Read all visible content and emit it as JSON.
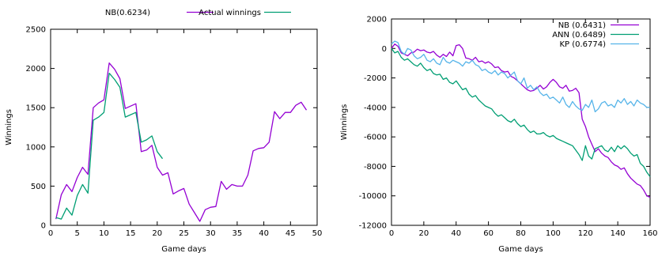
{
  "chart_data": [
    {
      "type": "line",
      "xlabel": "Game days",
      "ylabel": "Winnings",
      "xlim": [
        0,
        50
      ],
      "ylim": [
        0,
        2500
      ],
      "xticks": [
        0,
        5,
        10,
        15,
        20,
        25,
        30,
        35,
        40,
        45,
        50
      ],
      "yticks": [
        0,
        500,
        1000,
        1500,
        2000,
        2500
      ],
      "grid": false,
      "legend_position": "top",
      "series": [
        {
          "name": "NB(0.6234)",
          "color": "#9400d3",
          "x": [
            1,
            2,
            3,
            4,
            5,
            6,
            7,
            8,
            9,
            10,
            11,
            12,
            13,
            14,
            15,
            16,
            17,
            18,
            19,
            20,
            21,
            22,
            23,
            24,
            25,
            26,
            27,
            28,
            29,
            30,
            31,
            32,
            33,
            34,
            35,
            36,
            37,
            38,
            39,
            40,
            41,
            42,
            43,
            44,
            45,
            46,
            47,
            48
          ],
          "y": [
            80,
            390,
            520,
            430,
            610,
            740,
            650,
            1500,
            1560,
            1600,
            2070,
            1990,
            1870,
            1490,
            1520,
            1550,
            940,
            960,
            1020,
            740,
            640,
            670,
            400,
            440,
            470,
            270,
            160,
            50,
            200,
            230,
            240,
            560,
            460,
            520,
            500,
            500,
            640,
            950,
            980,
            990,
            1060,
            1450,
            1360,
            1440,
            1440,
            1530,
            1570,
            1470
          ]
        },
        {
          "name": "Actual winnings",
          "color": "#009e73",
          "x": [
            1,
            2,
            3,
            4,
            5,
            6,
            7,
            8,
            9,
            10,
            11,
            12,
            13,
            14,
            15,
            16,
            17,
            18,
            19,
            20,
            21
          ],
          "y": [
            100,
            80,
            220,
            130,
            380,
            520,
            410,
            1340,
            1380,
            1440,
            1940,
            1860,
            1760,
            1380,
            1410,
            1440,
            1060,
            1090,
            1140,
            940,
            850
          ]
        }
      ]
    },
    {
      "type": "line",
      "xlabel": "Game days",
      "ylabel": "Winnings",
      "xlim": [
        0,
        160
      ],
      "ylim": [
        -12000,
        2000
      ],
      "xticks": [
        0,
        20,
        40,
        60,
        80,
        100,
        120,
        140,
        160
      ],
      "yticks": [
        2000,
        0,
        -2000,
        -4000,
        -6000,
        -8000,
        -10000,
        -12000
      ],
      "grid": false,
      "legend_position": "top-right",
      "series": [
        {
          "name": "NB (0.6431)",
          "color": "#9400d3",
          "x": [
            0,
            2,
            4,
            6,
            8,
            10,
            12,
            14,
            16,
            18,
            20,
            22,
            24,
            26,
            28,
            30,
            32,
            34,
            36,
            38,
            40,
            42,
            44,
            46,
            48,
            50,
            52,
            54,
            56,
            58,
            60,
            62,
            64,
            66,
            68,
            70,
            72,
            74,
            76,
            78,
            80,
            82,
            84,
            86,
            88,
            90,
            92,
            94,
            96,
            98,
            100,
            102,
            104,
            106,
            108,
            110,
            112,
            114,
            116,
            118,
            120,
            122,
            124,
            126,
            128,
            130,
            132,
            134,
            136,
            138,
            140,
            142,
            144,
            146,
            148,
            150,
            152,
            154,
            156,
            158,
            160
          ],
          "y": [
            0,
            300,
            150,
            -300,
            -400,
            -500,
            -300,
            -250,
            -50,
            -150,
            -100,
            -250,
            -300,
            -200,
            -450,
            -600,
            -400,
            -550,
            -250,
            -500,
            200,
            250,
            0,
            -650,
            -700,
            -800,
            -600,
            -900,
            -850,
            -1000,
            -900,
            -1050,
            -1300,
            -1250,
            -1500,
            -1600,
            -1550,
            -1900,
            -2000,
            -2200,
            -2400,
            -2600,
            -2800,
            -2900,
            -2850,
            -2700,
            -2500,
            -2750,
            -2600,
            -2300,
            -2100,
            -2300,
            -2600,
            -2700,
            -2500,
            -2900,
            -2850,
            -2700,
            -3000,
            -4800,
            -5300,
            -6000,
            -6500,
            -7000,
            -6800,
            -7100,
            -7300,
            -7400,
            -7700,
            -7900,
            -8000,
            -8200,
            -8100,
            -8500,
            -8800,
            -9000,
            -9200,
            -9300,
            -9600,
            -10000,
            -10100
          ]
        },
        {
          "name": "ANN (0.6489)",
          "color": "#009e73",
          "x": [
            0,
            2,
            4,
            6,
            8,
            10,
            12,
            14,
            16,
            18,
            20,
            22,
            24,
            26,
            28,
            30,
            32,
            34,
            36,
            38,
            40,
            42,
            44,
            46,
            48,
            50,
            52,
            54,
            56,
            58,
            60,
            62,
            64,
            66,
            68,
            70,
            72,
            74,
            76,
            78,
            80,
            82,
            84,
            86,
            88,
            90,
            92,
            94,
            96,
            98,
            100,
            102,
            104,
            106,
            108,
            110,
            112,
            114,
            116,
            118,
            120,
            122,
            124,
            126,
            128,
            130,
            132,
            134,
            136,
            138,
            140,
            142,
            144,
            146,
            148,
            150,
            152,
            154,
            156,
            158,
            160
          ],
          "y": [
            0,
            -300,
            -200,
            -600,
            -800,
            -700,
            -900,
            -1100,
            -1200,
            -1000,
            -1300,
            -1500,
            -1400,
            -1700,
            -1800,
            -1750,
            -2100,
            -2000,
            -2300,
            -2400,
            -2200,
            -2500,
            -2800,
            -2700,
            -3100,
            -3300,
            -3200,
            -3500,
            -3700,
            -3900,
            -4000,
            -4100,
            -4400,
            -4600,
            -4500,
            -4700,
            -4900,
            -5000,
            -4800,
            -5100,
            -5300,
            -5200,
            -5500,
            -5700,
            -5600,
            -5800,
            -5800,
            -5700,
            -5900,
            -6000,
            -5900,
            -6100,
            -6200,
            -6300,
            -6400,
            -6500,
            -6600,
            -6900,
            -7200,
            -7600,
            -6600,
            -7300,
            -7500,
            -6800,
            -6700,
            -6600,
            -6900,
            -7000,
            -6700,
            -7000,
            -6600,
            -6800,
            -6600,
            -6800,
            -7100,
            -7300,
            -7200,
            -7800,
            -8000,
            -8400,
            -8700
          ]
        },
        {
          "name": "KP (0.6774)",
          "color": "#56b4e9",
          "x": [
            0,
            2,
            4,
            6,
            8,
            10,
            12,
            14,
            16,
            18,
            20,
            22,
            24,
            26,
            28,
            30,
            32,
            34,
            36,
            38,
            40,
            42,
            44,
            46,
            48,
            50,
            52,
            54,
            56,
            58,
            60,
            62,
            64,
            66,
            68,
            70,
            72,
            74,
            76,
            78,
            80,
            82,
            84,
            86,
            88,
            90,
            92,
            94,
            96,
            98,
            100,
            102,
            104,
            106,
            108,
            110,
            112,
            114,
            116,
            118,
            120,
            122,
            124,
            126,
            128,
            130,
            132,
            134,
            136,
            138,
            140,
            142,
            144,
            146,
            148,
            150,
            152,
            154,
            156,
            158,
            160
          ],
          "y": [
            300,
            500,
            400,
            -200,
            -400,
            0,
            -100,
            -500,
            -700,
            -600,
            -400,
            -800,
            -900,
            -700,
            -1000,
            -1100,
            -600,
            -900,
            -1000,
            -800,
            -900,
            -1000,
            -1200,
            -900,
            -1000,
            -800,
            -1100,
            -1200,
            -1500,
            -1400,
            -1600,
            -1700,
            -1500,
            -1800,
            -1600,
            -1700,
            -2000,
            -1800,
            -1600,
            -2200,
            -2400,
            -2000,
            -2700,
            -2500,
            -2800,
            -2600,
            -3000,
            -3200,
            -3100,
            -3400,
            -3300,
            -3500,
            -3700,
            -3300,
            -3800,
            -4000,
            -3600,
            -3900,
            -4100,
            -4200,
            -3800,
            -4000,
            -3500,
            -4300,
            -4100,
            -3700,
            -3600,
            -3900,
            -3800,
            -4000,
            -3500,
            -3700,
            -3400,
            -3800,
            -3600,
            -3900,
            -3500,
            -3700,
            -3800,
            -4000,
            -4000
          ]
        }
      ]
    }
  ]
}
